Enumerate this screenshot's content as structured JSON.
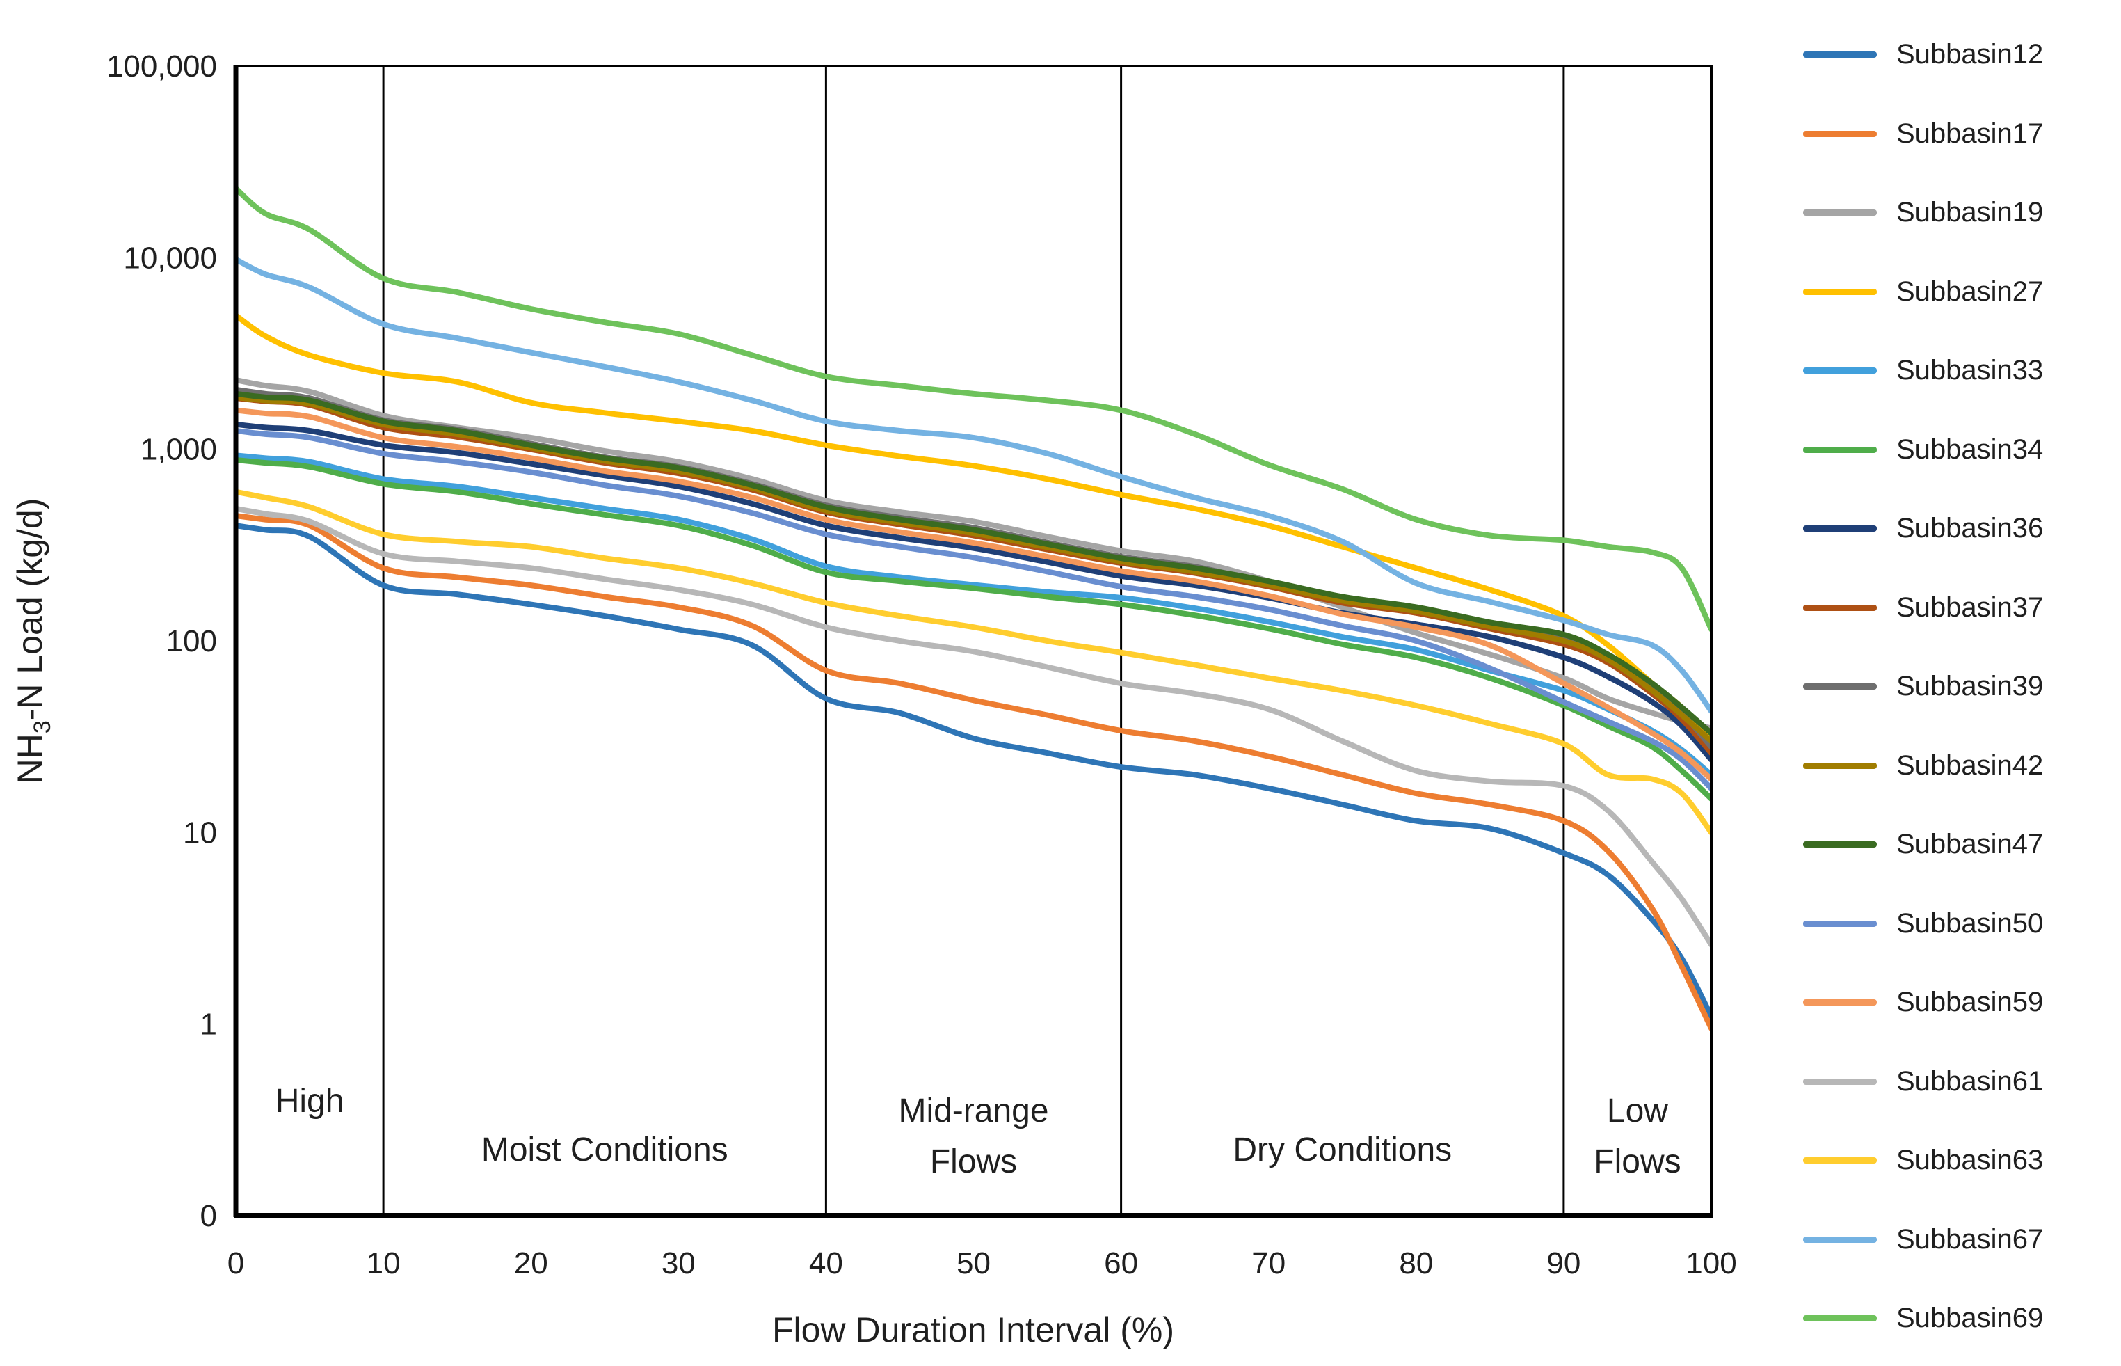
{
  "chart_data": {
    "type": "line",
    "title": "",
    "xlabel": "Flow Duration Interval (%)",
    "ylabel_prefix": "NH",
    "ylabel_sub": "3",
    "ylabel_suffix": "-N Load (kg/d)",
    "legend_position": "right",
    "grid": "off",
    "x_axis": {
      "min": 0,
      "max": 100,
      "tick_labels": [
        "0",
        "10",
        "20",
        "30",
        "40",
        "50",
        "60",
        "70",
        "80",
        "90",
        "100"
      ],
      "tick_values": [
        0,
        10,
        20,
        30,
        40,
        50,
        60,
        70,
        80,
        90,
        100
      ]
    },
    "y_axis": {
      "scale": "log",
      "min": 0.1,
      "max": 100000,
      "tick_labels": [
        "100,000",
        "10,000",
        "1,000",
        "100",
        "10",
        "1",
        "0"
      ],
      "tick_values": [
        100000,
        10000,
        1000,
        100,
        10,
        1,
        0.1
      ]
    },
    "zone_dividers_pct": [
      10,
      40,
      60,
      90
    ],
    "zones": [
      {
        "lines": [
          "High"
        ],
        "center_pct": 5
      },
      {
        "lines": [
          "Moist Conditions"
        ],
        "center_pct": 25
      },
      {
        "lines": [
          "Mid-range",
          "Flows"
        ],
        "center_pct": 50
      },
      {
        "lines": [
          "Dry Conditions"
        ],
        "center_pct": 75
      },
      {
        "lines": [
          "Low",
          "Flows"
        ],
        "center_pct": 95
      }
    ],
    "x": [
      0,
      2,
      5,
      10,
      15,
      20,
      25,
      30,
      35,
      40,
      45,
      50,
      55,
      60,
      65,
      70,
      75,
      80,
      85,
      90,
      93,
      96,
      98,
      100
    ],
    "series": [
      {
        "name": "Subbasin12",
        "color": "#2E75B6",
        "values": [
          400,
          380,
          350,
          195,
          175,
          155,
          135,
          115,
          95,
          50,
          42,
          31,
          26,
          22,
          20,
          17,
          14,
          11.5,
          10.5,
          7.8,
          6,
          3.5,
          2.2,
          1.1
        ]
      },
      {
        "name": "Subbasin17",
        "color": "#ED7D31",
        "values": [
          450,
          430,
          400,
          240,
          215,
          195,
          170,
          150,
          120,
          70,
          60,
          49,
          41,
          34,
          30,
          25,
          20,
          16,
          14,
          11.5,
          8,
          4,
          2,
          0.95
        ]
      },
      {
        "name": "Subbasin19",
        "color": "#A5A5A5",
        "values": [
          2300,
          2150,
          2000,
          1500,
          1300,
          1150,
          980,
          860,
          700,
          540,
          470,
          420,
          350,
          295,
          260,
          205,
          150,
          110,
          85,
          64,
          50,
          42,
          38,
          35
        ]
      },
      {
        "name": "Subbasin27",
        "color": "#FFC000",
        "values": [
          5000,
          3900,
          3100,
          2500,
          2250,
          1750,
          1550,
          1400,
          1250,
          1050,
          920,
          820,
          700,
          580,
          490,
          400,
          310,
          240,
          185,
          135,
          95,
          60,
          45,
          31
        ]
      },
      {
        "name": "Subbasin33",
        "color": "#41A0DC",
        "values": [
          930,
          900,
          860,
          700,
          640,
          560,
          490,
          430,
          340,
          245,
          215,
          196,
          180,
          168,
          148,
          126,
          105,
          90,
          70,
          55,
          44,
          34,
          27,
          20
        ]
      },
      {
        "name": "Subbasin34",
        "color": "#4FAD4A",
        "values": [
          880,
          850,
          810,
          660,
          600,
          520,
          455,
          400,
          315,
          228,
          205,
          188,
          170,
          155,
          136,
          116,
          96,
          82,
          64,
          46,
          36,
          28,
          21,
          15
        ]
      },
      {
        "name": "Subbasin36",
        "color": "#1F3F77",
        "values": [
          1350,
          1300,
          1250,
          1050,
          960,
          840,
          730,
          640,
          520,
          400,
          345,
          305,
          258,
          218,
          195,
          168,
          140,
          122,
          105,
          82,
          65,
          48,
          36,
          24
        ]
      },
      {
        "name": "Subbasin37",
        "color": "#AE5014",
        "values": [
          1850,
          1780,
          1700,
          1300,
          1160,
          1000,
          850,
          750,
          615,
          470,
          405,
          355,
          300,
          255,
          226,
          192,
          158,
          140,
          116,
          96,
          77,
          53,
          39,
          26
        ]
      },
      {
        "name": "Subbasin39",
        "color": "#6E6E6E",
        "values": [
          2050,
          1950,
          1850,
          1420,
          1270,
          1070,
          910,
          810,
          660,
          510,
          440,
          390,
          326,
          275,
          244,
          200,
          165,
          146,
          122,
          103,
          82,
          57,
          42,
          28
        ]
      },
      {
        "name": "Subbasin42",
        "color": "#A07D00",
        "values": [
          1870,
          1800,
          1730,
          1350,
          1200,
          1020,
          870,
          770,
          630,
          480,
          415,
          365,
          308,
          260,
          230,
          196,
          162,
          143,
          119,
          100,
          80,
          55,
          41,
          30
        ]
      },
      {
        "name": "Subbasin47",
        "color": "#3A6B21",
        "values": [
          1950,
          1870,
          1800,
          1400,
          1250,
          1050,
          900,
          800,
          650,
          500,
          430,
          380,
          320,
          270,
          240,
          205,
          170,
          150,
          125,
          108,
          85,
          60,
          45,
          33
        ]
      },
      {
        "name": "Subbasin50",
        "color": "#698ED0",
        "values": [
          1250,
          1200,
          1150,
          950,
          860,
          760,
          650,
          570,
          465,
          360,
          310,
          272,
          230,
          192,
          170,
          146,
          120,
          100,
          72,
          48,
          38,
          30,
          24,
          17
        ]
      },
      {
        "name": "Subbasin59",
        "color": "#F4975A",
        "values": [
          1600,
          1540,
          1480,
          1150,
          1030,
          900,
          770,
          680,
          560,
          430,
          370,
          325,
          275,
          232,
          205,
          172,
          138,
          118,
          95,
          60,
          45,
          33,
          26,
          19
        ]
      },
      {
        "name": "Subbasin61",
        "color": "#B7B7B7",
        "values": [
          490,
          460,
          420,
          285,
          260,
          240,
          210,
          185,
          155,
          118,
          100,
          88,
          73,
          60,
          53,
          44,
          30,
          21,
          18.5,
          17.5,
          13,
          7,
          4.5,
          2.6
        ]
      },
      {
        "name": "Subbasin63",
        "color": "#FFCD2E",
        "values": [
          600,
          560,
          500,
          360,
          330,
          310,
          270,
          240,
          200,
          158,
          135,
          118,
          100,
          87,
          75,
          64,
          55,
          46,
          37,
          29,
          20,
          19,
          16,
          10
        ]
      },
      {
        "name": "Subbasin67",
        "color": "#74B2E2",
        "values": [
          9800,
          8200,
          7000,
          4500,
          3800,
          3200,
          2700,
          2250,
          1800,
          1400,
          1250,
          1150,
          950,
          720,
          560,
          450,
          330,
          200,
          160,
          128,
          108,
          95,
          70,
          43
        ]
      },
      {
        "name": "Subbasin69",
        "color": "#6EC25B",
        "values": [
          23000,
          17000,
          14000,
          7800,
          6600,
          5400,
          4600,
          4000,
          3100,
          2400,
          2150,
          1950,
          1800,
          1600,
          1200,
          830,
          620,
          430,
          355,
          335,
          310,
          290,
          240,
          115
        ]
      }
    ]
  }
}
